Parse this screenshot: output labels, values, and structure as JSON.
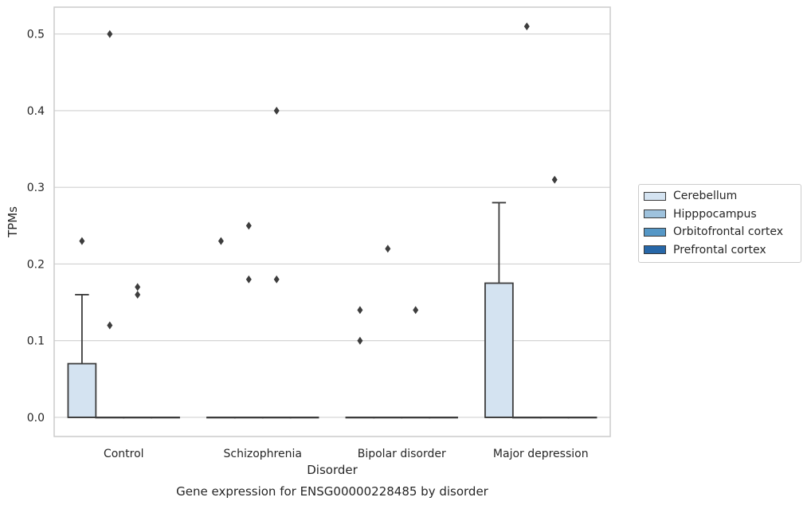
{
  "chart_data": {
    "type": "box",
    "title": "Gene expression for ENSG00000228485 by disorder",
    "xlabel": "Disorder",
    "ylabel": "TPMs",
    "categories": [
      "Control",
      "Schizophrenia",
      "Bipolar disorder",
      "Major depression"
    ],
    "ylim": [
      -0.025,
      0.535
    ],
    "yticks": [
      "0.0",
      "0.1",
      "0.2",
      "0.3",
      "0.4",
      "0.5"
    ],
    "grid": true,
    "legend_position": "right",
    "series": [
      {
        "name": "Cerebellum",
        "color": "#d4e3f1",
        "boxes": [
          {
            "q1": 0,
            "median": 0,
            "q3": 0.07,
            "whisker_low": 0,
            "whisker_high": 0.16,
            "outliers": [
              0.23
            ]
          },
          {
            "q1": 0,
            "median": 0,
            "q3": 0,
            "whisker_low": 0,
            "whisker_high": 0,
            "outliers": [
              0.23
            ]
          },
          {
            "q1": 0,
            "median": 0,
            "q3": 0,
            "whisker_low": 0,
            "whisker_high": 0,
            "outliers": [
              0.14,
              0.1
            ]
          },
          {
            "q1": 0,
            "median": 0,
            "q3": 0.175,
            "whisker_low": 0,
            "whisker_high": 0.28,
            "outliers": []
          }
        ]
      },
      {
        "name": "Hipppocampus",
        "color": "#9ec2dd",
        "boxes": [
          {
            "q1": 0,
            "median": 0,
            "q3": 0,
            "whisker_low": 0,
            "whisker_high": 0,
            "outliers": [
              0.5,
              0.12
            ]
          },
          {
            "q1": 0,
            "median": 0,
            "q3": 0,
            "whisker_low": 0,
            "whisker_high": 0,
            "outliers": [
              0.25,
              0.18
            ]
          },
          {
            "q1": 0,
            "median": 0,
            "q3": 0,
            "whisker_low": 0,
            "whisker_high": 0,
            "outliers": [
              0.22
            ]
          },
          {
            "q1": 0,
            "median": 0,
            "q3": 0,
            "whisker_low": 0,
            "whisker_high": 0,
            "outliers": [
              0.51
            ]
          }
        ]
      },
      {
        "name": "Orbitofrontal cortex",
        "color": "#5597c6",
        "boxes": [
          {
            "q1": 0,
            "median": 0,
            "q3": 0,
            "whisker_low": 0,
            "whisker_high": 0,
            "outliers": [
              0.17,
              0.16
            ]
          },
          {
            "q1": 0,
            "median": 0,
            "q3": 0,
            "whisker_low": 0,
            "whisker_high": 0,
            "outliers": [
              0.4,
              0.18
            ]
          },
          {
            "q1": 0,
            "median": 0,
            "q3": 0,
            "whisker_low": 0,
            "whisker_high": 0,
            "outliers": [
              0.14
            ]
          },
          {
            "q1": 0,
            "median": 0,
            "q3": 0,
            "whisker_low": 0,
            "whisker_high": 0,
            "outliers": [
              0.31
            ]
          }
        ]
      },
      {
        "name": "Prefrontal cortex",
        "color": "#2767a8",
        "boxes": [
          {
            "q1": 0,
            "median": 0,
            "q3": 0,
            "whisker_low": 0,
            "whisker_high": 0,
            "outliers": []
          },
          {
            "q1": 0,
            "median": 0,
            "q3": 0,
            "whisker_low": 0,
            "whisker_high": 0,
            "outliers": []
          },
          {
            "q1": 0,
            "median": 0,
            "q3": 0,
            "whisker_low": 0,
            "whisker_high": 0,
            "outliers": []
          },
          {
            "q1": 0,
            "median": 0,
            "q3": 0,
            "whisker_low": 0,
            "whisker_high": 0,
            "outliers": []
          }
        ]
      }
    ]
  }
}
